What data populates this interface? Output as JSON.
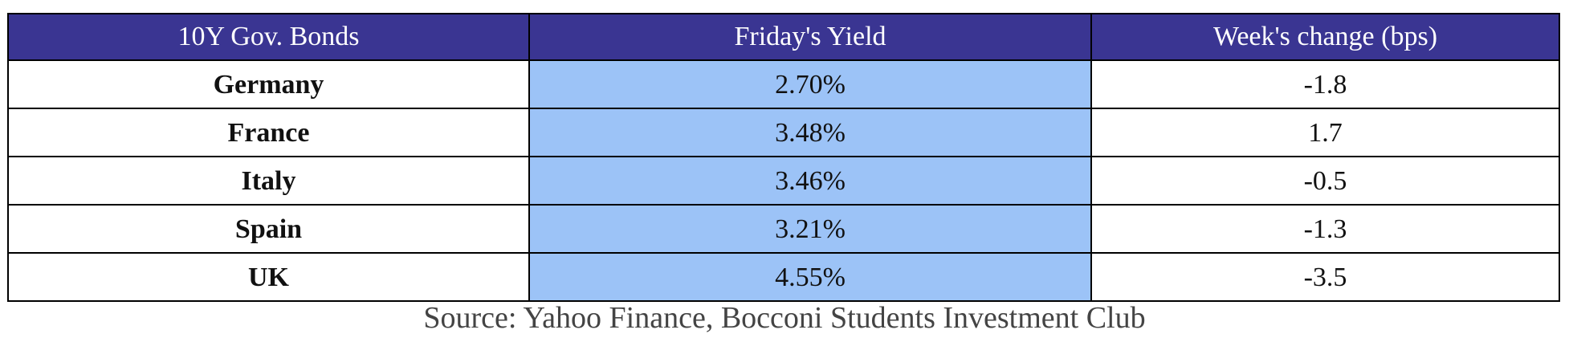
{
  "table": {
    "header": [
      "10Y Gov. Bonds",
      "Friday's Yield",
      "Week's change (bps)"
    ],
    "rows": [
      [
        "Germany",
        "2.70%",
        "-1.8"
      ],
      [
        "France",
        "3.48%",
        "1.7"
      ],
      [
        "Italy",
        "3.46%",
        "-0.5"
      ],
      [
        "Spain",
        "3.21%",
        "-1.3"
      ],
      [
        "UK",
        "4.55%",
        "-3.5"
      ]
    ]
  },
  "source": "Source: Yahoo Finance, Bocconi Students Investment Club"
}
